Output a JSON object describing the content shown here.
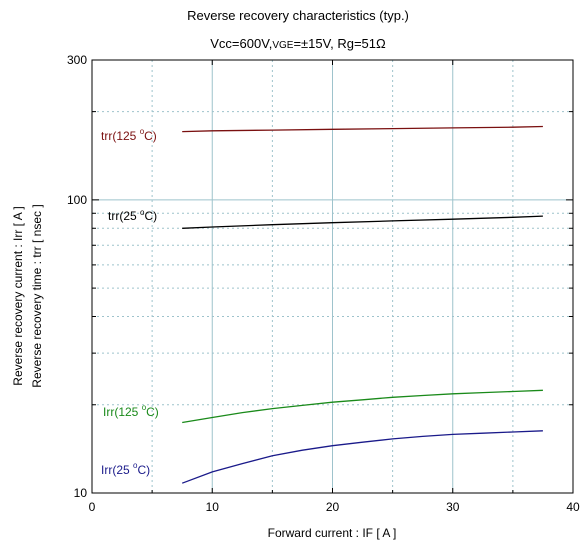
{
  "chart_data": {
    "type": "line",
    "title": "Reverse recovery characteristics  (typ.)",
    "subtitle_parts": {
      "pre": "Vcc=600V,",
      "vge": "VGE",
      "post": "=±15V, Rg=51Ω"
    },
    "xlabel": "Forward current  :  IF  [ A ]",
    "ylabel_lines": [
      "Reverse recovery current  :  Irr  [ A ]",
      "Reverse recovery time  :  trr  [ nsec ]"
    ],
    "xlim": [
      0,
      40
    ],
    "ylim": [
      10,
      300
    ],
    "yscale": "log",
    "grid": true,
    "x_ticks": [
      0,
      10,
      20,
      30,
      40
    ],
    "y_tick_labels": [
      "10",
      "100",
      "300"
    ],
    "series": [
      {
        "name_main": "trr(125 ",
        "name_sup": "o",
        "name_end": "C)",
        "color": "#7a1010",
        "x": [
          7.5,
          10,
          15,
          20,
          25,
          30,
          35,
          37.5
        ],
        "y": [
          171,
          172,
          173,
          174,
          175,
          176,
          177,
          178
        ]
      },
      {
        "name_main": "trr(25 ",
        "name_sup": "o",
        "name_end": "C)",
        "color": "#000000",
        "x": [
          7.5,
          10,
          15,
          20,
          25,
          30,
          35,
          37.5
        ],
        "y": [
          80,
          80.8,
          82.3,
          83.6,
          84.8,
          85.9,
          87.2,
          88
        ]
      },
      {
        "name_main": "Irr(125 ",
        "name_sup": "o",
        "name_end": "C)",
        "color": "#1a8a1a",
        "x": [
          7.5,
          10,
          12.5,
          15,
          17.5,
          20,
          22.5,
          25,
          27.5,
          30,
          32.5,
          35,
          37.5
        ],
        "y": [
          17.4,
          18.1,
          18.8,
          19.4,
          19.9,
          20.4,
          20.8,
          21.2,
          21.5,
          21.8,
          22.0,
          22.2,
          22.4
        ]
      },
      {
        "name_main": "Irr(25 ",
        "name_sup": "o",
        "name_end": "C)",
        "color": "#1a1a8a",
        "x": [
          7.5,
          10,
          12.5,
          15,
          17.5,
          20,
          22.5,
          25,
          27.5,
          30,
          32.5,
          35,
          37.5
        ],
        "y": [
          10.8,
          11.8,
          12.6,
          13.4,
          14.0,
          14.5,
          14.9,
          15.3,
          15.6,
          15.85,
          16.0,
          16.15,
          16.3
        ]
      }
    ]
  }
}
